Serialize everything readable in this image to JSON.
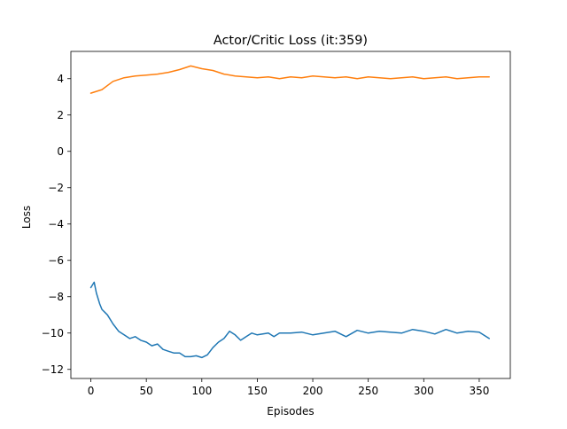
{
  "chart_data": {
    "type": "line",
    "title": "Actor/Critic Loss (it:359)",
    "xlabel": "Episodes",
    "ylabel": "Loss",
    "xlim": [
      -18,
      378
    ],
    "ylim": [
      -12.5,
      5.5
    ],
    "xticks": [
      0,
      50,
      100,
      150,
      200,
      250,
      300,
      350
    ],
    "yticks": [
      -12,
      -10,
      -8,
      -6,
      -4,
      -2,
      0,
      2,
      4
    ],
    "grid": false,
    "legend": "none",
    "series": [
      {
        "color": "#ff7f0e",
        "x": [
          0,
          10,
          20,
          30,
          40,
          50,
          60,
          70,
          80,
          90,
          100,
          110,
          120,
          130,
          140,
          150,
          160,
          170,
          180,
          190,
          200,
          210,
          220,
          230,
          240,
          250,
          260,
          270,
          280,
          290,
          300,
          310,
          320,
          330,
          340,
          350,
          359
        ],
        "y": [
          3.2,
          3.4,
          3.85,
          4.05,
          4.15,
          4.2,
          4.25,
          4.35,
          4.5,
          4.7,
          4.55,
          4.45,
          4.25,
          4.15,
          4.1,
          4.05,
          4.1,
          4.0,
          4.1,
          4.05,
          4.15,
          4.1,
          4.05,
          4.1,
          4.0,
          4.1,
          4.05,
          4.0,
          4.05,
          4.1,
          4.0,
          4.05,
          4.1,
          4.0,
          4.05,
          4.1,
          4.1
        ]
      },
      {
        "color": "#1f77b4",
        "x": [
          0,
          3,
          5,
          8,
          10,
          15,
          20,
          25,
          30,
          35,
          40,
          45,
          50,
          55,
          60,
          65,
          70,
          75,
          80,
          85,
          90,
          95,
          100,
          105,
          110,
          115,
          120,
          125,
          130,
          135,
          140,
          145,
          150,
          155,
          160,
          165,
          170,
          180,
          190,
          200,
          210,
          220,
          230,
          240,
          250,
          260,
          270,
          280,
          290,
          300,
          310,
          320,
          330,
          340,
          350,
          359
        ],
        "y": [
          -7.5,
          -7.2,
          -7.8,
          -8.4,
          -8.7,
          -9.0,
          -9.5,
          -9.9,
          -10.1,
          -10.3,
          -10.2,
          -10.4,
          -10.5,
          -10.7,
          -10.6,
          -10.9,
          -11.0,
          -11.1,
          -11.1,
          -11.3,
          -11.3,
          -11.25,
          -11.35,
          -11.2,
          -10.8,
          -10.5,
          -10.3,
          -9.9,
          -10.1,
          -10.4,
          -10.2,
          -10.0,
          -10.1,
          -10.05,
          -10.0,
          -10.2,
          -10.0,
          -10.0,
          -9.95,
          -10.1,
          -10.0,
          -9.9,
          -10.2,
          -9.85,
          -10.0,
          -9.9,
          -9.95,
          -10.0,
          -9.8,
          -9.9,
          -10.05,
          -9.8,
          -10.0,
          -9.9,
          -9.95,
          -10.3
        ]
      }
    ]
  }
}
